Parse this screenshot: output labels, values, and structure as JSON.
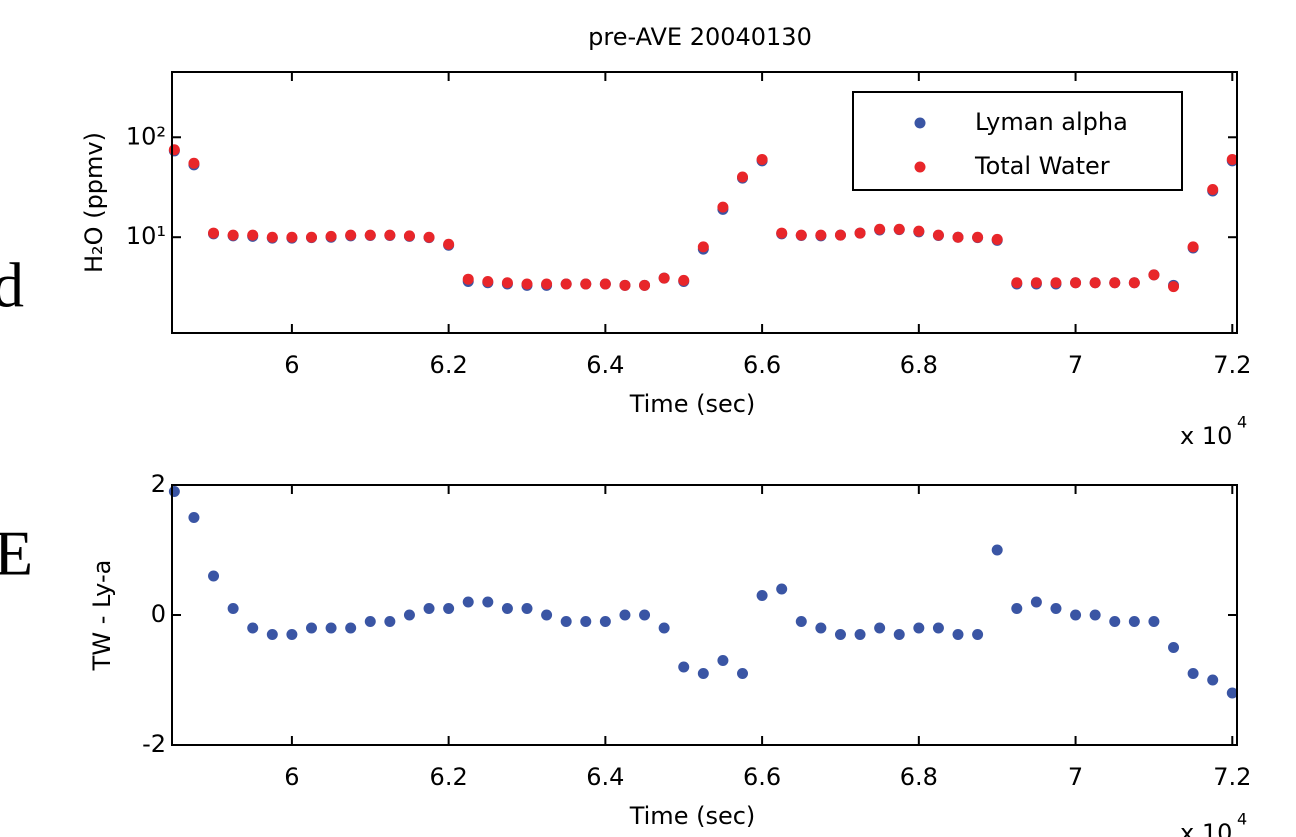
{
  "page_fragments": [
    "d",
    "E"
  ],
  "chart_data": [
    {
      "type": "scatter",
      "title": "pre-AVE 20040130",
      "x_label": "Time (sec)",
      "y_label": "H₂O (ppmv)",
      "x_scale_label": "x 10",
      "x_scale_exponent": "4",
      "log_y": true,
      "legend": "upper right",
      "xlim": [
        58470,
        72060
      ],
      "ylim": [
        1.1,
        450
      ],
      "xticks": [
        {
          "value": 60000,
          "label": "6"
        },
        {
          "value": 62000,
          "label": "6.2"
        },
        {
          "value": 64000,
          "label": "6.4"
        },
        {
          "value": 66000,
          "label": "6.6"
        },
        {
          "value": 68000,
          "label": "6.8"
        },
        {
          "value": 70000,
          "label": "7"
        },
        {
          "value": 72000,
          "label": "7.2"
        }
      ],
      "yticks": [
        {
          "value": 10,
          "label": "10¹"
        },
        {
          "value": 100,
          "label": "10²"
        }
      ],
      "x": [
        58500,
        58750,
        59000,
        59250,
        59500,
        59750,
        60000,
        60250,
        60500,
        60750,
        61000,
        61250,
        61500,
        61750,
        62000,
        62250,
        62500,
        62750,
        63000,
        63250,
        63500,
        63750,
        64000,
        64250,
        64500,
        64750,
        65000,
        65250,
        65500,
        65750,
        66000,
        66250,
        66500,
        66750,
        67000,
        67250,
        67500,
        67750,
        68000,
        68250,
        68500,
        68750,
        69000,
        69250,
        69500,
        69750,
        70000,
        70250,
        70500,
        70750,
        71000,
        71250,
        71500,
        71750,
        72000
      ],
      "series": [
        {
          "name": "Lyman alpha",
          "color": "#3a55a4",
          "values": [
            73,
            53,
            10.8,
            10.3,
            10.2,
            9.8,
            9.8,
            9.9,
            10,
            10.3,
            10.4,
            10.4,
            10.2,
            9.9,
            8.3,
            3.6,
            3.5,
            3.4,
            3.3,
            3.3,
            3.4,
            3.4,
            3.4,
            3.3,
            3.3,
            3.9,
            3.6,
            7.6,
            19,
            39,
            58,
            10.8,
            10.4,
            10.3,
            10.5,
            11,
            11.8,
            11.9,
            11.3,
            10.4,
            10,
            9.9,
            9.3,
            3.4,
            3.4,
            3.4,
            3.5,
            3.5,
            3.5,
            3.5,
            4.2,
            3.3,
            7.8,
            29,
            58
          ]
        },
        {
          "name": "Total Water",
          "color": "#e8262a",
          "values": [
            75,
            55,
            11,
            10.5,
            10.5,
            10,
            10,
            10,
            10.2,
            10.5,
            10.5,
            10.5,
            10.3,
            10,
            8.5,
            3.8,
            3.6,
            3.5,
            3.4,
            3.4,
            3.4,
            3.4,
            3.4,
            3.3,
            3.3,
            3.9,
            3.7,
            8,
            20,
            40,
            60,
            11,
            10.5,
            10.5,
            10.5,
            11,
            12,
            12,
            11.5,
            10.5,
            10,
            10,
            9.5,
            3.5,
            3.5,
            3.5,
            3.5,
            3.5,
            3.5,
            3.5,
            4.2,
            3.2,
            8,
            30,
            60
          ]
        }
      ]
    },
    {
      "type": "scatter",
      "x_label": "Time (sec)",
      "y_label": "TW - Ly-a",
      "x_scale_label": "x 10",
      "x_scale_exponent": "4",
      "xlim": [
        58470,
        72060
      ],
      "ylim": [
        -2,
        2
      ],
      "xticks": [
        {
          "value": 60000,
          "label": "6"
        },
        {
          "value": 62000,
          "label": "6.2"
        },
        {
          "value": 64000,
          "label": "6.4"
        },
        {
          "value": 66000,
          "label": "6.6"
        },
        {
          "value": 68000,
          "label": "6.8"
        },
        {
          "value": 70000,
          "label": "7"
        },
        {
          "value": 72000,
          "label": "7.2"
        }
      ],
      "yticks": [
        -2,
        0,
        2
      ],
      "x": [
        58500,
        58750,
        59000,
        59250,
        59500,
        59750,
        60000,
        60250,
        60500,
        60750,
        61000,
        61250,
        61500,
        61750,
        62000,
        62250,
        62500,
        62750,
        63000,
        63250,
        63500,
        63750,
        64000,
        64250,
        64500,
        64750,
        65000,
        65250,
        65500,
        65750,
        66000,
        66250,
        66500,
        66750,
        67000,
        67250,
        67500,
        67750,
        68000,
        68250,
        68500,
        68750,
        69000,
        69250,
        69500,
        69750,
        70000,
        70250,
        70500,
        70750,
        71000,
        71250,
        71500,
        71750,
        72000
      ],
      "series": [
        {
          "color": "#3a55a4",
          "values": [
            1.9,
            1.5,
            0.6,
            0.1,
            -0.2,
            -0.3,
            -0.3,
            -0.2,
            -0.2,
            -0.2,
            -0.1,
            -0.1,
            0,
            0.1,
            0.1,
            0.2,
            0.2,
            0.1,
            0.1,
            0,
            -0.1,
            -0.1,
            -0.1,
            0,
            0,
            -0.2,
            -0.8,
            -0.9,
            -0.7,
            -0.9,
            0.3,
            0.4,
            -0.1,
            -0.2,
            -0.3,
            -0.3,
            -0.2,
            -0.3,
            -0.2,
            -0.2,
            -0.3,
            -0.3,
            1.0,
            0.1,
            0.2,
            0.1,
            0,
            0,
            -0.1,
            -0.1,
            -0.1,
            -0.5,
            -0.9,
            -1.0,
            -1.2
          ]
        }
      ]
    }
  ]
}
